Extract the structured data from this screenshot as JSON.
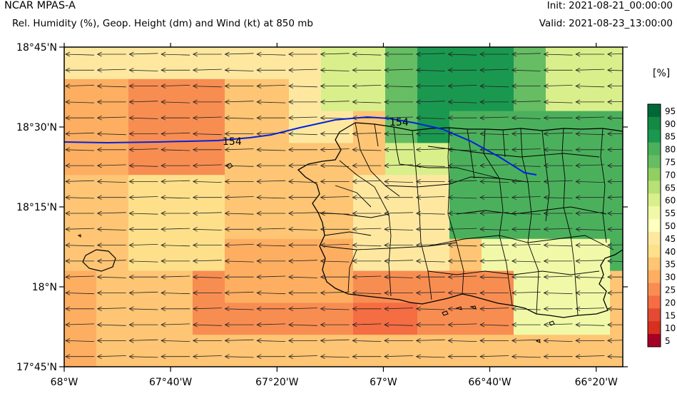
{
  "header": {
    "app_title": "NCAR MPAS-A",
    "subtitle": "Rel. Humidity (%), Geop. Height (dm) and Wind (kt) at 850 mb",
    "init": "Init: 2021-08-21_00:00:00",
    "valid": "Valid: 2021-08-23_13:00:00"
  },
  "map": {
    "lon_range": [
      -68.0,
      -66.25
    ],
    "lat_range": [
      17.75,
      18.75
    ],
    "lat_labels": [
      "18°45'N",
      "18°30'N",
      "18°15'N",
      "18°N",
      "17°45'N"
    ],
    "lat_values": [
      18.75,
      18.5,
      18.25,
      18.0,
      17.75
    ],
    "lon_labels": [
      "68°W",
      "67°40'W",
      "67°20'W",
      "67°W",
      "66°40'W",
      "66°20'W"
    ],
    "lon_values": [
      -68.0,
      -67.6667,
      -67.3333,
      -67.0,
      -66.6667,
      -66.3333
    ],
    "contour_label": "154",
    "contour_label_2": "154",
    "colors": {
      "coast": "#000000",
      "contour": "#0022dd",
      "wind": "#222222"
    }
  },
  "colorbar": {
    "unit": "[%]",
    "levels": [
      "95",
      "90",
      "85",
      "80",
      "75",
      "70",
      "65",
      "60",
      "55",
      "50",
      "45",
      "40",
      "35",
      "30",
      "25",
      "20",
      "15",
      "10",
      "5"
    ],
    "colors": [
      "#006837",
      "#138a43",
      "#1a9850",
      "#4bb05c",
      "#66bd63",
      "#91cf60",
      "#b7e075",
      "#d9ef8b",
      "#f1f9a8",
      "#ffffbf",
      "#fee8a0",
      "#fee08b",
      "#fdc574",
      "#fdae61",
      "#f88d52",
      "#f46d43",
      "#e34a33",
      "#d7301f",
      "#a50026"
    ]
  }
}
